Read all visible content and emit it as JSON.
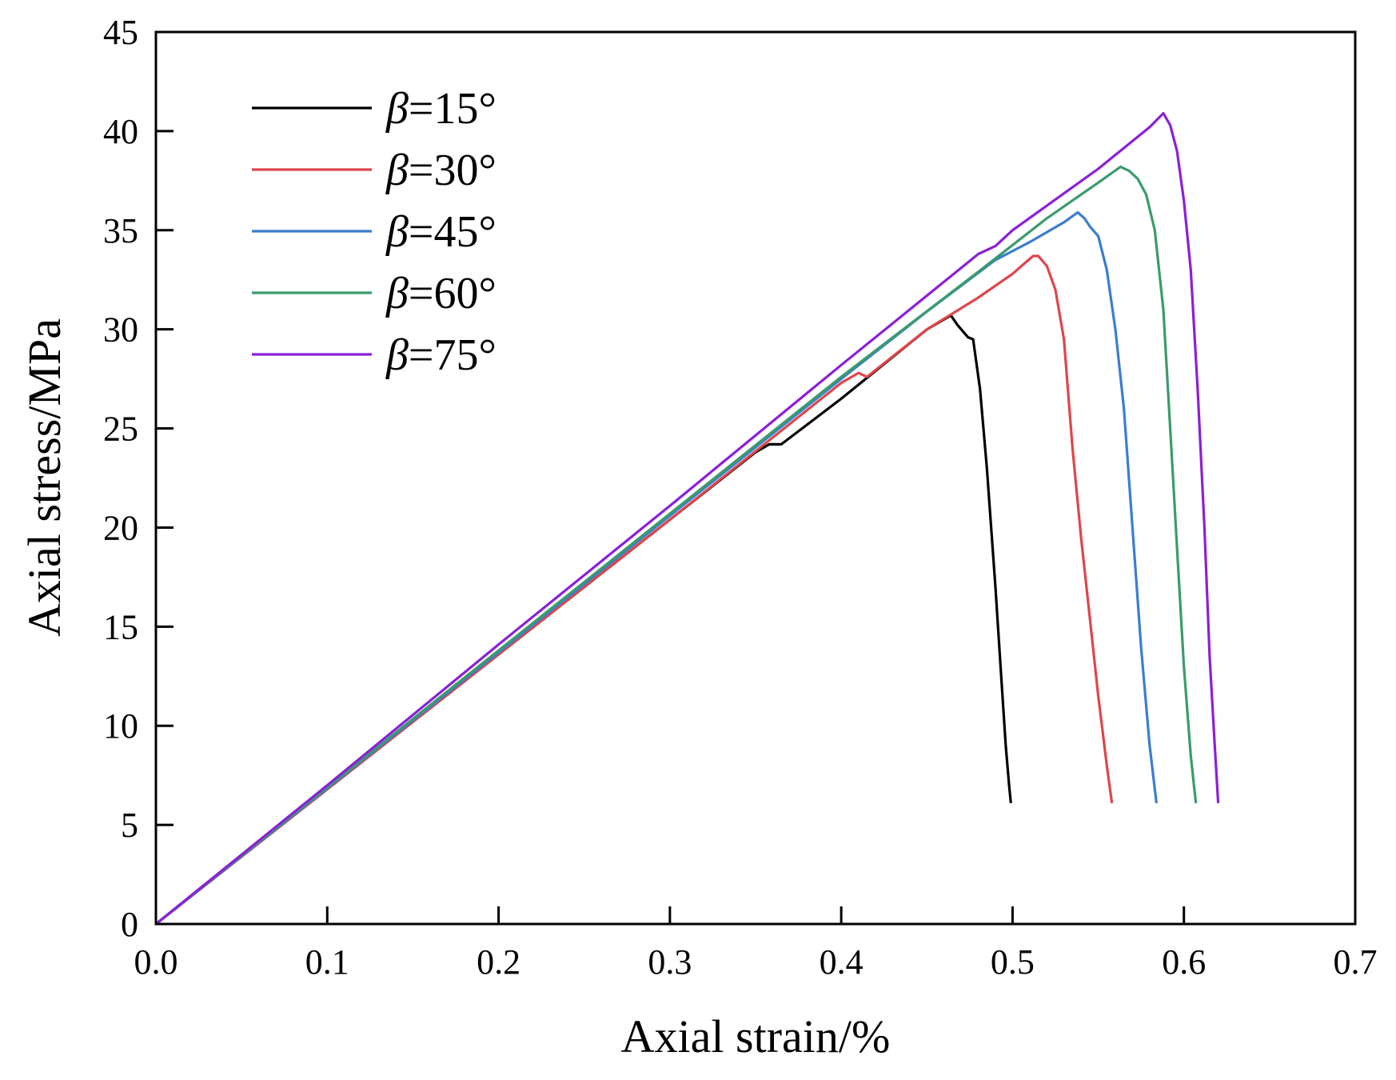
{
  "chart_data": {
    "type": "line",
    "title": "",
    "xlabel": "Axial strain/%",
    "ylabel": "Axial stress/MPa",
    "xlim": [
      0,
      0.7
    ],
    "ylim": [
      0,
      45
    ],
    "xticks": [
      "0.0",
      "0.1",
      "0.2",
      "0.3",
      "0.4",
      "0.5",
      "0.6",
      "0.7"
    ],
    "yticks": [
      "0",
      "5",
      "10",
      "15",
      "20",
      "25",
      "30",
      "35",
      "40",
      "45"
    ],
    "grid": false,
    "legend_position": "top-left",
    "series": [
      {
        "name": "β=15°",
        "legend_symbol": "β",
        "legend_suffix": "=15°",
        "color": "#000000",
        "x": [
          0,
          0.1,
          0.2,
          0.3,
          0.35,
          0.358,
          0.365,
          0.4,
          0.45,
          0.464,
          0.468,
          0.474,
          0.477,
          0.481,
          0.485,
          0.49,
          0.493,
          0.496,
          0.498,
          0.499
        ],
        "y": [
          0,
          6.8,
          13.6,
          20.4,
          23.8,
          24.2,
          24.2,
          26.5,
          30.0,
          30.7,
          30.2,
          29.6,
          29.5,
          27.0,
          23.0,
          17.0,
          13.0,
          9.0,
          7.0,
          6.1
        ]
      },
      {
        "name": "β=30°",
        "legend_symbol": "β",
        "legend_suffix": "=30°",
        "color": "#e0454a",
        "x": [
          0,
          0.1,
          0.2,
          0.3,
          0.4,
          0.41,
          0.415,
          0.45,
          0.48,
          0.5,
          0.512,
          0.515,
          0.52,
          0.525,
          0.53,
          0.535,
          0.54,
          0.545,
          0.55,
          0.555,
          0.558
        ],
        "y": [
          0,
          6.8,
          13.6,
          20.4,
          27.3,
          27.8,
          27.6,
          30.0,
          31.6,
          32.8,
          33.7,
          33.7,
          33.2,
          32.0,
          29.5,
          24.0,
          19.5,
          15.5,
          11.5,
          8.0,
          6.1
        ]
      },
      {
        "name": "β=45°",
        "legend_symbol": "β",
        "legend_suffix": "=45°",
        "color": "#3b7dd0",
        "x": [
          0,
          0.1,
          0.2,
          0.3,
          0.4,
          0.45,
          0.49,
          0.51,
          0.53,
          0.538,
          0.542,
          0.545,
          0.55,
          0.555,
          0.56,
          0.565,
          0.57,
          0.575,
          0.58,
          0.584
        ],
        "y": [
          0,
          6.85,
          13.7,
          20.6,
          27.5,
          30.9,
          33.5,
          34.4,
          35.4,
          35.9,
          35.6,
          35.2,
          34.7,
          33.0,
          30.0,
          26.0,
          20.0,
          14.0,
          9.0,
          6.1
        ]
      },
      {
        "name": "β=60°",
        "legend_symbol": "β",
        "legend_suffix": "=60°",
        "color": "#3a9b6c",
        "x": [
          0,
          0.1,
          0.2,
          0.3,
          0.4,
          0.48,
          0.52,
          0.55,
          0.563,
          0.568,
          0.573,
          0.578,
          0.583,
          0.588,
          0.592,
          0.596,
          0.6,
          0.604,
          0.607
        ],
        "y": [
          0,
          6.9,
          13.8,
          20.7,
          27.6,
          32.9,
          35.6,
          37.4,
          38.2,
          38.0,
          37.6,
          36.8,
          35.0,
          31.0,
          25.0,
          19.0,
          13.0,
          8.5,
          6.1
        ]
      },
      {
        "name": "β=75°",
        "legend_symbol": "β",
        "legend_suffix": "=75°",
        "color": "#8b1fd9",
        "x": [
          0,
          0.1,
          0.2,
          0.3,
          0.4,
          0.48,
          0.49,
          0.5,
          0.55,
          0.58,
          0.588,
          0.592,
          0.596,
          0.6,
          0.604,
          0.608,
          0.612,
          0.615,
          0.618,
          0.62
        ],
        "y": [
          0,
          7.0,
          14.1,
          21.1,
          28.2,
          33.8,
          34.2,
          35.0,
          38.1,
          40.2,
          40.9,
          40.3,
          39.0,
          36.5,
          33.0,
          27.0,
          20.0,
          13.5,
          9.0,
          6.1
        ]
      }
    ]
  }
}
